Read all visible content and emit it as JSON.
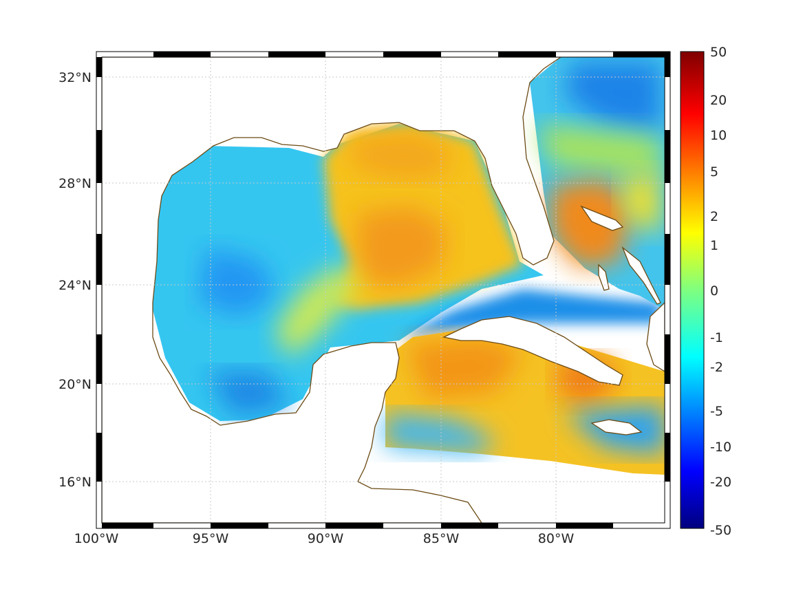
{
  "map": {
    "lon_ticks": [
      "100°W",
      "95°W",
      "90°W",
      "85°W",
      "80°W"
    ],
    "lat_ticks": [
      "32°N",
      "28°N",
      "24°N",
      "20°N",
      "16°N"
    ],
    "lon_range": [
      -100,
      -75.1
    ],
    "lat_range": [
      14.2,
      33.0
    ],
    "grid": true,
    "coastline_color": "#6b4a14",
    "land_color": "#ffffff"
  },
  "colorbar": {
    "labels": [
      "50",
      "20",
      "10",
      "5",
      "2",
      "1",
      "0",
      "-1",
      "-2",
      "-5",
      "-10",
      "-20",
      "-50"
    ],
    "colormap": "jet",
    "placement": "right"
  }
}
